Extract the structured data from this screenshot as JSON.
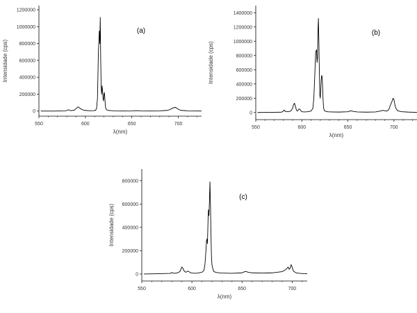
{
  "chart_data": [
    {
      "type": "line",
      "panel_label": "(a)",
      "xlabel": "λ(nm)",
      "ylabel": "Intensidade (cps)",
      "xlim": [
        550,
        725
      ],
      "ylim": [
        -60000,
        1250000
      ],
      "x_ticks": [
        550,
        600,
        650,
        700
      ],
      "x_tick_labels": [
        "550",
        "600",
        "650",
        "700"
      ],
      "y_ticks": [
        0,
        200000,
        400000,
        600000,
        800000,
        1000000,
        1200000
      ],
      "y_tick_labels": [
        "0",
        "200000",
        "400000",
        "600000",
        "800000",
        "1000000",
        "1200000"
      ],
      "series": [
        {
          "x": [
            552,
            565,
            578,
            580,
            582,
            584,
            588,
            590,
            592,
            594,
            596,
            598,
            600,
            603,
            606,
            609,
            611,
            612,
            613,
            614,
            615,
            615.5,
            616,
            616.5,
            617,
            617.5,
            618,
            618.5,
            619,
            619.5,
            620,
            620.5,
            621,
            621.5,
            622,
            623,
            625,
            628,
            632,
            640,
            650,
            655,
            660,
            670,
            680,
            688,
            691,
            693,
            695,
            696,
            697,
            698,
            699,
            700,
            702,
            705,
            710,
            720,
            725
          ],
          "y": [
            0,
            0,
            2000,
            8000,
            16000,
            5000,
            10000,
            30000,
            50000,
            35000,
            20000,
            12000,
            8000,
            5000,
            4000,
            5000,
            10000,
            30000,
            150000,
            700000,
            950000,
            800000,
            1110000,
            600000,
            280000,
            200000,
            300000,
            240000,
            150000,
            120000,
            200000,
            220000,
            140000,
            60000,
            30000,
            14000,
            8000,
            5000,
            3000,
            2000,
            3000,
            5000,
            3000,
            2000,
            3000,
            8000,
            18000,
            30000,
            42000,
            38000,
            46000,
            36000,
            30000,
            22000,
            12000,
            7000,
            3000,
            2000,
            0
          ]
        }
      ]
    },
    {
      "type": "line",
      "panel_label": "(b)",
      "xlabel": "λ(nm)",
      "ylabel": "Intensidade (cps)",
      "xlim": [
        550,
        725
      ],
      "ylim": [
        -100000,
        1500000
      ],
      "x_ticks": [
        550,
        600,
        650,
        700
      ],
      "x_tick_labels": [
        "550",
        "600",
        "650",
        "700"
      ],
      "y_ticks": [
        0,
        200000,
        400000,
        600000,
        800000,
        1000000,
        1200000,
        1400000
      ],
      "y_tick_labels": [
        "0",
        "200000",
        "400000",
        "600000",
        "800000",
        "1000000",
        "1200000",
        "1400000"
      ],
      "series": [
        {
          "x": [
            552,
            565,
            578,
            580,
            581,
            582,
            585,
            588,
            590,
            591,
            592,
            593,
            594,
            595,
            596,
            597,
            598,
            599,
            600,
            603,
            606,
            610,
            612,
            613,
            614,
            615,
            616,
            616.5,
            617,
            617.5,
            618,
            618.5,
            619,
            619.5,
            620,
            620.5,
            621,
            621.5,
            622,
            622.5,
            623,
            623.5,
            624,
            625,
            628,
            632,
            640,
            650,
            653,
            656,
            660,
            670,
            680,
            685,
            688,
            690,
            692,
            694,
            695,
            696,
            697,
            698,
            699,
            700,
            701,
            702,
            704,
            708,
            715,
            725
          ],
          "y": [
            0,
            2000,
            5000,
            20000,
            35000,
            15000,
            10000,
            20000,
            60000,
            110000,
            130000,
            90000,
            40000,
            20000,
            30000,
            50000,
            45000,
            25000,
            10000,
            8000,
            10000,
            20000,
            60000,
            200000,
            500000,
            850000,
            880000,
            700000,
            760000,
            1150000,
            1320000,
            1000000,
            600000,
            250000,
            200000,
            300000,
            450000,
            520000,
            500000,
            380000,
            200000,
            80000,
            40000,
            20000,
            10000,
            8000,
            6000,
            10000,
            25000,
            15000,
            8000,
            5000,
            8000,
            20000,
            30000,
            25000,
            20000,
            35000,
            60000,
            100000,
            130000,
            160000,
            200000,
            180000,
            110000,
            60000,
            25000,
            12000,
            6000,
            2000
          ]
        }
      ]
    },
    {
      "type": "line",
      "panel_label": "(c)",
      "xlabel": "λ(nm)",
      "ylabel": "Intensidade (cps)",
      "xlim": [
        550,
        715
      ],
      "ylim": [
        -60000,
        900000
      ],
      "x_ticks": [
        550,
        600,
        650,
        700
      ],
      "x_tick_labels": [
        "550",
        "600",
        "650",
        "700"
      ],
      "y_ticks": [
        0,
        200000,
        400000,
        600000,
        800000
      ],
      "y_tick_labels": [
        "0",
        "200000",
        "400000",
        "600000",
        "800000"
      ],
      "series": [
        {
          "x": [
            552,
            565,
            578,
            580,
            582,
            585,
            588,
            589,
            590,
            591,
            592,
            593,
            594,
            595,
            596,
            597,
            598,
            599,
            600,
            603,
            606,
            610,
            612,
            613,
            614,
            614.5,
            615,
            615.5,
            616,
            616.5,
            617,
            617.5,
            618,
            618.5,
            619,
            619.5,
            620,
            621,
            622,
            625,
            630,
            640,
            650,
            652,
            654,
            656,
            660,
            670,
            680,
            690,
            694,
            696,
            697,
            698,
            699,
            700,
            701,
            702,
            704,
            708,
            715
          ],
          "y": [
            0,
            2000,
            5000,
            12000,
            6000,
            8000,
            20000,
            40000,
            60000,
            50000,
            30000,
            20000,
            15000,
            20000,
            25000,
            20000,
            15000,
            10000,
            8000,
            6000,
            8000,
            15000,
            30000,
            80000,
            200000,
            280000,
            300000,
            260000,
            430000,
            550000,
            500000,
            620000,
            790000,
            600000,
            350000,
            150000,
            80000,
            40000,
            20000,
            12000,
            8000,
            6000,
            10000,
            18000,
            22000,
            15000,
            10000,
            8000,
            10000,
            20000,
            40000,
            60000,
            40000,
            50000,
            80000,
            60000,
            30000,
            20000,
            10000,
            5000,
            2000
          ]
        }
      ]
    }
  ]
}
